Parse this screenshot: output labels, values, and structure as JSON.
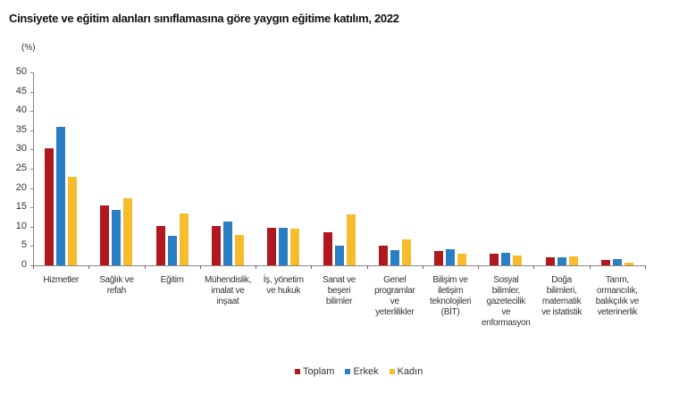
{
  "chart_data": {
    "type": "bar",
    "title": "Cinsiyete ve eğitim alanları sınıflamasına göre yaygın eğitime katılım, 2022",
    "xlabel": "",
    "ylabel": "(%)",
    "ylim": [
      0,
      50
    ],
    "yticks": [
      0,
      5,
      10,
      15,
      20,
      25,
      30,
      35,
      40,
      45,
      50
    ],
    "grid": false,
    "legend_position": "bottom",
    "categories": [
      "Hizmetler",
      "Sağlık ve refah",
      "Eğitim",
      "Mühendislik, imalat ve inşaat",
      "İş, yönetim ve hukuk",
      "Sanat ve beşeri bilimler",
      "Genel programlar ve yeterlilikler",
      "Bilişim ve iletişim teknolojileri (BİT)",
      "Sosyal bilimler, gazetecilik ve enformasyon",
      "Doğa bilimleri, matematik ve istatistik",
      "Tarım, ormancılık, balıkçılık ve veterinerlik"
    ],
    "category_lines": [
      [
        "Hizmetler"
      ],
      [
        "Sağlık ve",
        "refah"
      ],
      [
        "Eğitim"
      ],
      [
        "Mühendislik,",
        "imalat ve",
        "inşaat"
      ],
      [
        "İş, yönetim",
        "ve hukuk"
      ],
      [
        "Sanat ve",
        "beşeri",
        "bilimler"
      ],
      [
        "Genel",
        "programlar",
        "ve",
        "yeterlilikler"
      ],
      [
        "Bilişim ve",
        "iletişim",
        "teknolojileri",
        "(BİT)"
      ],
      [
        "Sosyal",
        "bilimler,",
        "gazetecilik",
        "ve",
        "enformasyon"
      ],
      [
        "Doğa",
        "bilimleri,",
        "matematik",
        "ve istatistik"
      ],
      [
        "Tarım,",
        "ormancılık,",
        "balıkçılık ve",
        "veterinerlik"
      ]
    ],
    "series": [
      {
        "name": "Toplam",
        "color": "#b0171f",
        "values": [
          30.3,
          15.5,
          10.2,
          10.2,
          9.8,
          8.6,
          5.1,
          3.6,
          3.0,
          2.1,
          1.3
        ]
      },
      {
        "name": "Erkek",
        "color": "#2a7fc4",
        "values": [
          35.9,
          14.3,
          7.6,
          11.3,
          9.8,
          5.2,
          3.9,
          4.2,
          3.3,
          2.1,
          1.6
        ]
      },
      {
        "name": "Kadın",
        "color": "#f6bc2c",
        "values": [
          22.9,
          17.4,
          13.4,
          7.9,
          9.4,
          13.2,
          6.8,
          3.0,
          2.6,
          2.3,
          0.6
        ]
      }
    ]
  }
}
